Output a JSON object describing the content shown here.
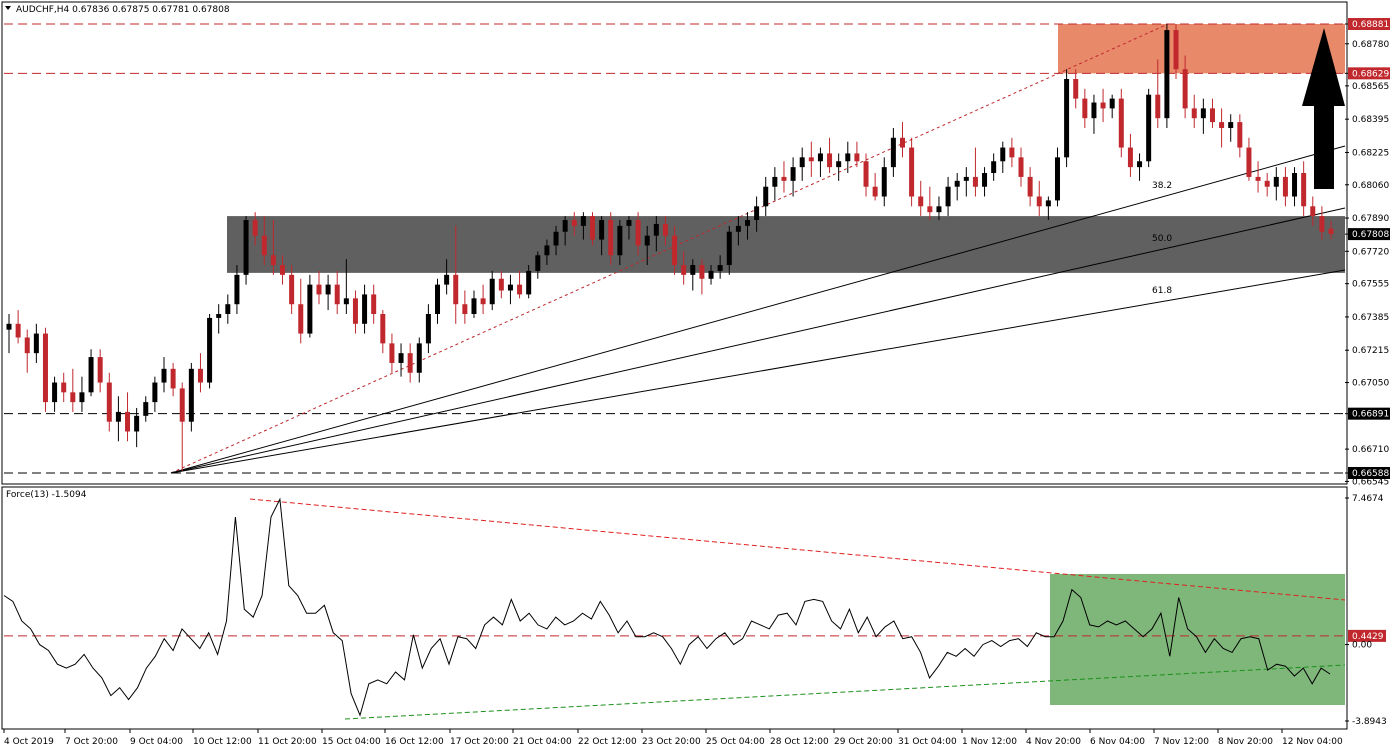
{
  "header": {
    "title": "AUDCHF,H4  0.67836 0.67875 0.67781 0.67808"
  },
  "colors": {
    "bull_candle": "#000000",
    "bear_candle": "#c0282d",
    "support_zone": "#606060",
    "resistance_zone": "#e8896a",
    "indicator_zone": "#7fb77a",
    "level_line": "#c0282d",
    "arrow": "#000000",
    "indicator_line": "#000000",
    "indicator_trend_down": "#e02020",
    "indicator_trend_up": "#1a8f1a"
  },
  "chart_data": [
    {
      "type": "candlestick",
      "title": "AUDCHF,H4  0.67836 0.67875 0.67781 0.67808",
      "ylim": [
        0.66545,
        0.6896
      ],
      "y_ticks": [
        "0.68881",
        "0.68780",
        "0.68629",
        "0.68565",
        "0.68395",
        "0.68225",
        "0.68060",
        "0.67890",
        "0.67808",
        "0.67720",
        "0.67555",
        "0.67385",
        "0.67215",
        "0.67050",
        "0.66891",
        "0.66710",
        "0.66588",
        "0.66545"
      ],
      "x_ticks": [
        "4 Oct 2019",
        "7 Oct 20:00",
        "9 Oct 04:00",
        "10 Oct 12:00",
        "11 Oct 20:00",
        "15 Oct 04:00",
        "16 Oct 12:00",
        "17 Oct 20:00",
        "21 Oct 04:00",
        "22 Oct 12:00",
        "23 Oct 20:00",
        "25 Oct 04:00",
        "28 Oct 12:00",
        "29 Oct 20:00",
        "31 Oct 04:00",
        "1 Nov 12:00",
        "4 Nov 20:00",
        "6 Nov 04:00",
        "7 Nov 12:00",
        "8 Nov 20:00",
        "12 Nov 04:00"
      ],
      "levels": [
        {
          "value": 0.68881,
          "label": "0.68881",
          "style": "dashed-red"
        },
        {
          "value": 0.68629,
          "label": "0.68629",
          "style": "dashed-red"
        },
        {
          "value": 0.66891,
          "label": "0.66891",
          "style": "dashed-black"
        },
        {
          "value": 0.66588,
          "label": "0.66588",
          "style": "dashed-black"
        }
      ],
      "current_price": {
        "value": 0.67808,
        "label": "0.67808"
      },
      "zones": [
        {
          "name": "resistance",
          "from": 0.68629,
          "to": 0.68881
        },
        {
          "name": "support",
          "from": 0.6761,
          "to": 0.679
        }
      ],
      "fan_labels": [
        "38.2",
        "50.0",
        "61.8"
      ],
      "candles_ohlc": [
        [
          0.6732,
          0.674,
          0.672,
          0.6735
        ],
        [
          0.6735,
          0.6742,
          0.6725,
          0.6728
        ],
        [
          0.6728,
          0.6732,
          0.671,
          0.672
        ],
        [
          0.672,
          0.6735,
          0.6715,
          0.673
        ],
        [
          0.673,
          0.6733,
          0.669,
          0.6695
        ],
        [
          0.6695,
          0.6708,
          0.669,
          0.6705
        ],
        [
          0.6705,
          0.671,
          0.6695,
          0.67
        ],
        [
          0.67,
          0.6712,
          0.669,
          0.6695
        ],
        [
          0.6695,
          0.6708,
          0.669,
          0.67
        ],
        [
          0.67,
          0.6722,
          0.6698,
          0.6718
        ],
        [
          0.6718,
          0.6722,
          0.67,
          0.6705
        ],
        [
          0.6705,
          0.671,
          0.668,
          0.6685
        ],
        [
          0.6685,
          0.6698,
          0.6675,
          0.669
        ],
        [
          0.669,
          0.67,
          0.6675,
          0.668
        ],
        [
          0.668,
          0.6692,
          0.6672,
          0.6688
        ],
        [
          0.6688,
          0.6698,
          0.6685,
          0.6695
        ],
        [
          0.6695,
          0.6708,
          0.669,
          0.6705
        ],
        [
          0.6705,
          0.6718,
          0.67,
          0.6712
        ],
        [
          0.6712,
          0.6715,
          0.6698,
          0.6702
        ],
        [
          0.6702,
          0.6705,
          0.666,
          0.6685
        ],
        [
          0.6685,
          0.6715,
          0.668,
          0.6712
        ],
        [
          0.6712,
          0.672,
          0.67,
          0.6705
        ],
        [
          0.6705,
          0.674,
          0.6702,
          0.6738
        ],
        [
          0.6738,
          0.6745,
          0.673,
          0.674
        ],
        [
          0.674,
          0.675,
          0.6735,
          0.6745
        ],
        [
          0.6745,
          0.6765,
          0.674,
          0.676
        ],
        [
          0.676,
          0.679,
          0.6755,
          0.6788
        ],
        [
          0.6788,
          0.6792,
          0.6775,
          0.678
        ],
        [
          0.678,
          0.679,
          0.6765,
          0.677
        ],
        [
          0.677,
          0.6788,
          0.676,
          0.6765
        ],
        [
          0.6765,
          0.677,
          0.6755,
          0.676
        ],
        [
          0.676,
          0.6765,
          0.674,
          0.6745
        ],
        [
          0.6745,
          0.6758,
          0.6725,
          0.673
        ],
        [
          0.673,
          0.676,
          0.6728,
          0.6755
        ],
        [
          0.6755,
          0.6762,
          0.6745,
          0.675
        ],
        [
          0.675,
          0.676,
          0.6742,
          0.6755
        ],
        [
          0.6755,
          0.6762,
          0.674,
          0.6745
        ],
        [
          0.6745,
          0.6768,
          0.674,
          0.6748
        ],
        [
          0.6748,
          0.6752,
          0.673,
          0.6735
        ],
        [
          0.6735,
          0.6755,
          0.673,
          0.675
        ],
        [
          0.675,
          0.6755,
          0.6735,
          0.674
        ],
        [
          0.674,
          0.6742,
          0.672,
          0.6725
        ],
        [
          0.6725,
          0.673,
          0.671,
          0.6715
        ],
        [
          0.6715,
          0.6725,
          0.6708,
          0.672
        ],
        [
          0.672,
          0.6725,
          0.6705,
          0.671
        ],
        [
          0.671,
          0.6728,
          0.6705,
          0.6725
        ],
        [
          0.6725,
          0.6745,
          0.672,
          0.674
        ],
        [
          0.674,
          0.6758,
          0.6735,
          0.6755
        ],
        [
          0.6755,
          0.6768,
          0.675,
          0.676
        ],
        [
          0.676,
          0.6785,
          0.6735,
          0.6745
        ],
        [
          0.6745,
          0.6752,
          0.6735,
          0.674
        ],
        [
          0.674,
          0.6752,
          0.6738,
          0.6748
        ],
        [
          0.6748,
          0.6755,
          0.674,
          0.6745
        ],
        [
          0.6745,
          0.6762,
          0.6742,
          0.6758
        ],
        [
          0.6758,
          0.6762,
          0.6748,
          0.6752
        ],
        [
          0.6752,
          0.676,
          0.6745,
          0.6755
        ],
        [
          0.6755,
          0.6762,
          0.6748,
          0.675
        ],
        [
          0.675,
          0.6765,
          0.6748,
          0.6762
        ],
        [
          0.6762,
          0.6772,
          0.6758,
          0.677
        ],
        [
          0.677,
          0.6778,
          0.6765,
          0.6775
        ],
        [
          0.6775,
          0.6785,
          0.677,
          0.6782
        ],
        [
          0.6782,
          0.679,
          0.6775,
          0.6788
        ],
        [
          0.6788,
          0.6792,
          0.678,
          0.6785
        ],
        [
          0.6785,
          0.6792,
          0.6778,
          0.679
        ],
        [
          0.679,
          0.6792,
          0.6775,
          0.6778
        ],
        [
          0.6778,
          0.679,
          0.677,
          0.6788
        ],
        [
          0.6788,
          0.6792,
          0.6765,
          0.677
        ],
        [
          0.677,
          0.6788,
          0.6765,
          0.6785
        ],
        [
          0.6785,
          0.679,
          0.6778,
          0.6788
        ],
        [
          0.6788,
          0.6792,
          0.677,
          0.6775
        ],
        [
          0.6775,
          0.6785,
          0.6765,
          0.678
        ],
        [
          0.678,
          0.679,
          0.6772,
          0.6786
        ],
        [
          0.6786,
          0.679,
          0.6775,
          0.678
        ],
        [
          0.678,
          0.6785,
          0.676,
          0.6765
        ],
        [
          0.6765,
          0.6772,
          0.6755,
          0.676
        ],
        [
          0.676,
          0.6768,
          0.6752,
          0.6765
        ],
        [
          0.6765,
          0.6768,
          0.675,
          0.6758
        ],
        [
          0.6758,
          0.6765,
          0.6755,
          0.6762
        ],
        [
          0.6762,
          0.677,
          0.6758,
          0.6765
        ],
        [
          0.6765,
          0.6785,
          0.676,
          0.6782
        ],
        [
          0.6782,
          0.679,
          0.6775,
          0.6785
        ],
        [
          0.6785,
          0.6792,
          0.6778,
          0.6788
        ],
        [
          0.6788,
          0.68,
          0.6782,
          0.6795
        ],
        [
          0.6795,
          0.681,
          0.679,
          0.6805
        ],
        [
          0.6805,
          0.6815,
          0.6798,
          0.681
        ],
        [
          0.681,
          0.6818,
          0.6802,
          0.6808
        ],
        [
          0.6808,
          0.682,
          0.68,
          0.6815
        ],
        [
          0.6815,
          0.6825,
          0.6808,
          0.682
        ],
        [
          0.682,
          0.6828,
          0.681,
          0.6818
        ],
        [
          0.6818,
          0.6825,
          0.681,
          0.6822
        ],
        [
          0.6822,
          0.683,
          0.6812,
          0.6815
        ],
        [
          0.6815,
          0.6822,
          0.6808,
          0.6818
        ],
        [
          0.6818,
          0.6828,
          0.6812,
          0.6822
        ],
        [
          0.6822,
          0.6828,
          0.6815,
          0.6818
        ],
        [
          0.6818,
          0.6822,
          0.68,
          0.6805
        ],
        [
          0.6805,
          0.6812,
          0.6798,
          0.68
        ],
        [
          0.68,
          0.682,
          0.6795,
          0.6815
        ],
        [
          0.6815,
          0.6835,
          0.681,
          0.683
        ],
        [
          0.683,
          0.6838,
          0.682,
          0.6825
        ],
        [
          0.6825,
          0.683,
          0.6795,
          0.68
        ],
        [
          0.68,
          0.6808,
          0.679,
          0.6795
        ],
        [
          0.6795,
          0.6805,
          0.6788,
          0.6792
        ],
        [
          0.6792,
          0.68,
          0.6788,
          0.6795
        ],
        [
          0.6795,
          0.681,
          0.679,
          0.6805
        ],
        [
          0.6805,
          0.6812,
          0.6798,
          0.6808
        ],
        [
          0.6808,
          0.6815,
          0.68,
          0.681
        ],
        [
          0.681,
          0.6825,
          0.68,
          0.6805
        ],
        [
          0.6805,
          0.6815,
          0.68,
          0.6812
        ],
        [
          0.6812,
          0.6822,
          0.6808,
          0.6818
        ],
        [
          0.6818,
          0.6828,
          0.6812,
          0.6825
        ],
        [
          0.6825,
          0.683,
          0.6815,
          0.682
        ],
        [
          0.682,
          0.6825,
          0.6805,
          0.681
        ],
        [
          0.681,
          0.6815,
          0.6795,
          0.68
        ],
        [
          0.68,
          0.6808,
          0.679,
          0.6795
        ],
        [
          0.6795,
          0.68,
          0.6788,
          0.6798
        ],
        [
          0.6798,
          0.6825,
          0.6795,
          0.682
        ],
        [
          0.682,
          0.6865,
          0.6815,
          0.686
        ],
        [
          0.686,
          0.6865,
          0.6845,
          0.685
        ],
        [
          0.685,
          0.6855,
          0.6835,
          0.684
        ],
        [
          0.684,
          0.6852,
          0.6832,
          0.6848
        ],
        [
          0.6848,
          0.6855,
          0.6838,
          0.6845
        ],
        [
          0.6845,
          0.6852,
          0.684,
          0.685
        ],
        [
          0.685,
          0.6855,
          0.682,
          0.6825
        ],
        [
          0.6825,
          0.6832,
          0.681,
          0.6815
        ],
        [
          0.6815,
          0.6822,
          0.6808,
          0.6818
        ],
        [
          0.6818,
          0.6855,
          0.6815,
          0.6852
        ],
        [
          0.6852,
          0.687,
          0.6835,
          0.684
        ],
        [
          0.684,
          0.6888,
          0.6835,
          0.6885
        ],
        [
          0.6885,
          0.6888,
          0.686,
          0.6865
        ],
        [
          0.6865,
          0.6872,
          0.684,
          0.6845
        ],
        [
          0.6845,
          0.6852,
          0.6835,
          0.684
        ],
        [
          0.684,
          0.685,
          0.6832,
          0.6845
        ],
        [
          0.6845,
          0.685,
          0.6835,
          0.6838
        ],
        [
          0.6838,
          0.6845,
          0.6825,
          0.6835
        ],
        [
          0.6835,
          0.6842,
          0.6828,
          0.6838
        ],
        [
          0.6838,
          0.6842,
          0.682,
          0.6825
        ],
        [
          0.6825,
          0.683,
          0.6808,
          0.681
        ],
        [
          0.681,
          0.6818,
          0.6802,
          0.6808
        ],
        [
          0.6808,
          0.6812,
          0.68,
          0.6805
        ],
        [
          0.6805,
          0.6815,
          0.6798,
          0.681
        ],
        [
          0.681,
          0.6815,
          0.6795,
          0.68
        ],
        [
          0.68,
          0.6815,
          0.6795,
          0.6812
        ],
        [
          0.6812,
          0.6818,
          0.679,
          0.6795
        ],
        [
          0.6795,
          0.68,
          0.6785,
          0.679
        ],
        [
          0.679,
          0.6795,
          0.6778,
          0.6782
        ],
        [
          0.67836,
          0.67875,
          0.67781,
          0.67808
        ]
      ]
    },
    {
      "type": "line",
      "title": "Force(13) -1.5094",
      "ylim": [
        -3.8943,
        7.4674
      ],
      "y_ticks": [
        "7.4674",
        "0.4429",
        "0.00",
        "-3.8943"
      ],
      "reference_line": {
        "value": 0.4429,
        "label": "0.4429"
      },
      "values": [
        2.5,
        2.2,
        1.2,
        0.8,
        0.0,
        -0.3,
        -1.0,
        -1.2,
        -1.0,
        -0.5,
        -1.2,
        -1.7,
        -2.6,
        -2.2,
        -2.8,
        -2.2,
        -1.2,
        -0.6,
        0.3,
        -0.3,
        0.8,
        0.3,
        -0.2,
        0.6,
        -0.5,
        1.2,
        6.5,
        1.8,
        1.4,
        2.5,
        6.5,
        7.4,
        3.0,
        2.5,
        1.6,
        1.6,
        2.0,
        0.6,
        0.2,
        -2.5,
        -3.6,
        -2.0,
        -1.8,
        -2.0,
        -1.4,
        -1.8,
        0.5,
        -1.2,
        -0.2,
        0.3,
        -1.0,
        0.4,
        0.3,
        -0.2,
        1.0,
        1.4,
        1.0,
        2.3,
        1.2,
        1.6,
        1.0,
        0.8,
        1.4,
        1.0,
        1.2,
        1.6,
        1.3,
        2.2,
        1.5,
        0.6,
        1.2,
        0.4,
        0.4,
        0.6,
        0.4,
        -0.2,
        -1.0,
        0.0,
        0.4,
        -0.2,
        0.3,
        0.6,
        0.0,
        0.3,
        1.2,
        1.0,
        0.8,
        1.5,
        1.6,
        1.0,
        2.2,
        2.3,
        2.2,
        1.2,
        0.8,
        1.8,
        0.6,
        1.4,
        0.4,
        0.9,
        1.2,
        0.3,
        0.4,
        -0.4,
        -1.7,
        -1.1,
        -0.4,
        -0.6,
        -0.2,
        -0.6,
        0.0,
        0.2,
        -0.1,
        0.2,
        0.3,
        -0.1,
        0.6,
        0.4,
        0.4,
        1.2,
        2.8,
        2.4,
        1.0,
        0.9,
        1.2,
        1.0,
        1.2,
        0.8,
        0.4,
        0.8,
        1.6,
        -0.6,
        2.4,
        0.8,
        0.4,
        -0.4,
        0.3,
        -0.2,
        -0.4,
        0.3,
        0.4,
        0.3,
        -1.3,
        -1.0,
        -1.1,
        -1.6,
        -1.2,
        -2.0,
        -1.2,
        -1.5
      ],
      "x_ticks": [
        "4 Oct 2019",
        "7 Oct 20:00",
        "9 Oct 04:00",
        "10 Oct 12:00",
        "11 Oct 20:00",
        "15 Oct 04:00",
        "16 Oct 12:00",
        "17 Oct 20:00",
        "21 Oct 04:00",
        "22 Oct 12:00",
        "23 Oct 20:00",
        "25 Oct 04:00",
        "28 Oct 12:00",
        "29 Oct 20:00",
        "31 Oct 04:00",
        "1 Nov 12:00",
        "4 Nov 20:00",
        "6 Nov 04:00",
        "7 Nov 12:00",
        "8 Nov 20:00",
        "12 Nov 04:00"
      ]
    }
  ]
}
